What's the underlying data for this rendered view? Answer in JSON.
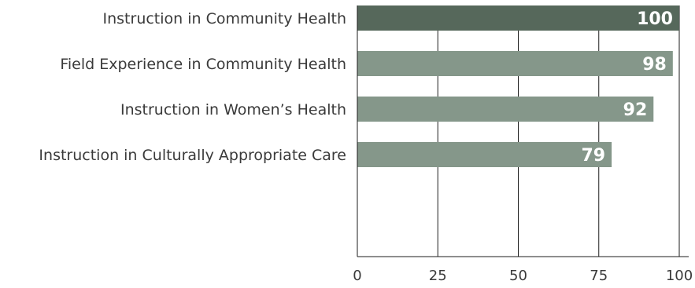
{
  "chart_data": {
    "type": "bar",
    "orientation": "horizontal",
    "categories": [
      "Instruction in Community Health",
      "Field Experience in Community Health",
      "Instruction in Women’s Health",
      "Instruction in Culturally Appropriate Care"
    ],
    "values": [
      100,
      98,
      92,
      79
    ],
    "data_labels": [
      "100",
      "98",
      "92",
      "79"
    ],
    "title": "",
    "xlabel": "",
    "ylabel": "",
    "xlim": [
      0,
      100
    ],
    "x_ticks": [
      0,
      25,
      50,
      75,
      100
    ],
    "x_tick_labels": [
      "0",
      "25",
      "50",
      "75",
      "100"
    ],
    "grid": "vertical",
    "legend": "none",
    "colors": {
      "highlight_bar": "#56685b",
      "bar": "#85978a",
      "gridline": "#1e1e1e",
      "axis": "#1e1e1e",
      "value_label": "#ffffff",
      "text": "#3a3a3a"
    }
  }
}
